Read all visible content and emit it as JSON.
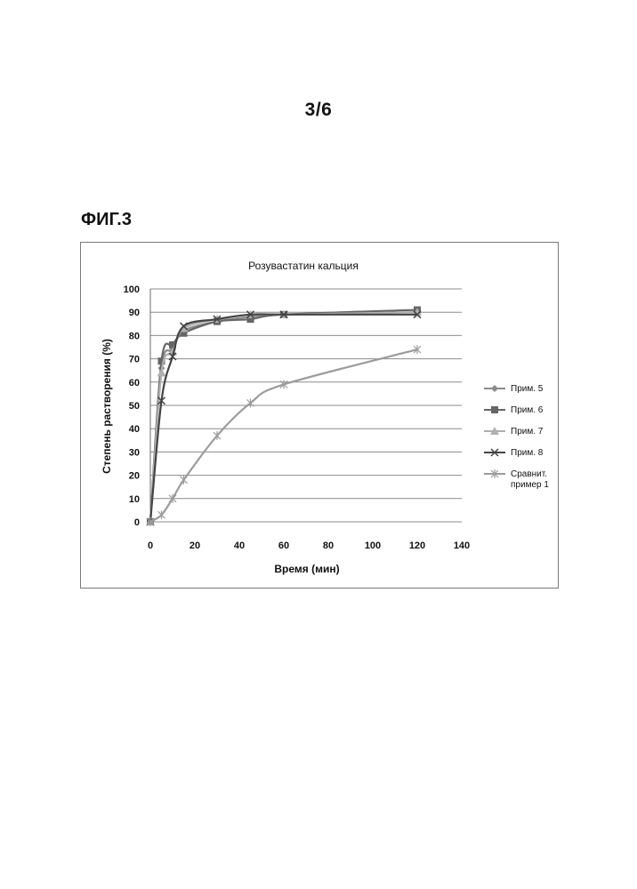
{
  "page": {
    "number": "3/6",
    "figure_label": "ФИГ.3"
  },
  "chart_data": {
    "type": "line",
    "title": "Розувастатин кальция",
    "xlabel": "Время (мин)",
    "ylabel": "Степень растворения (%)",
    "xlim": [
      0,
      140
    ],
    "ylim": [
      0,
      100
    ],
    "xticks": [
      0,
      20,
      40,
      60,
      80,
      100,
      120,
      140
    ],
    "yticks": [
      0,
      10,
      20,
      30,
      40,
      50,
      60,
      70,
      80,
      90,
      100
    ],
    "grid": "horizontal",
    "legend_position": "right",
    "series": [
      {
        "name": "Прим. 5",
        "color": "#8a8a8a",
        "marker": "diamond",
        "x": [
          0,
          5,
          10,
          15,
          30,
          45,
          60,
          120
        ],
        "y": [
          0,
          66,
          74,
          82,
          86,
          88,
          89,
          90
        ]
      },
      {
        "name": "Прим. 6",
        "color": "#666666",
        "marker": "square",
        "x": [
          0,
          5,
          10,
          15,
          30,
          45,
          60,
          120
        ],
        "y": [
          0,
          69,
          76,
          81,
          86,
          87,
          89,
          91
        ]
      },
      {
        "name": "Прим. 7",
        "color": "#b0b0b0",
        "marker": "triangle",
        "x": [
          0,
          5,
          10,
          15,
          30,
          45,
          60,
          120
        ],
        "y": [
          0,
          64,
          73,
          83,
          87,
          89,
          89,
          90
        ]
      },
      {
        "name": "Прим. 8",
        "color": "#444444",
        "marker": "x",
        "x": [
          0,
          5,
          10,
          15,
          30,
          45,
          60,
          120
        ],
        "y": [
          0,
          52,
          71,
          84,
          87,
          89,
          89,
          89
        ]
      },
      {
        "name": "Сравнит. пример 1",
        "color": "#9c9c9c",
        "marker": "star",
        "x": [
          0,
          5,
          10,
          15,
          30,
          45,
          60,
          120
        ],
        "y": [
          0,
          3,
          10,
          18,
          37,
          51,
          59,
          74
        ]
      }
    ]
  }
}
